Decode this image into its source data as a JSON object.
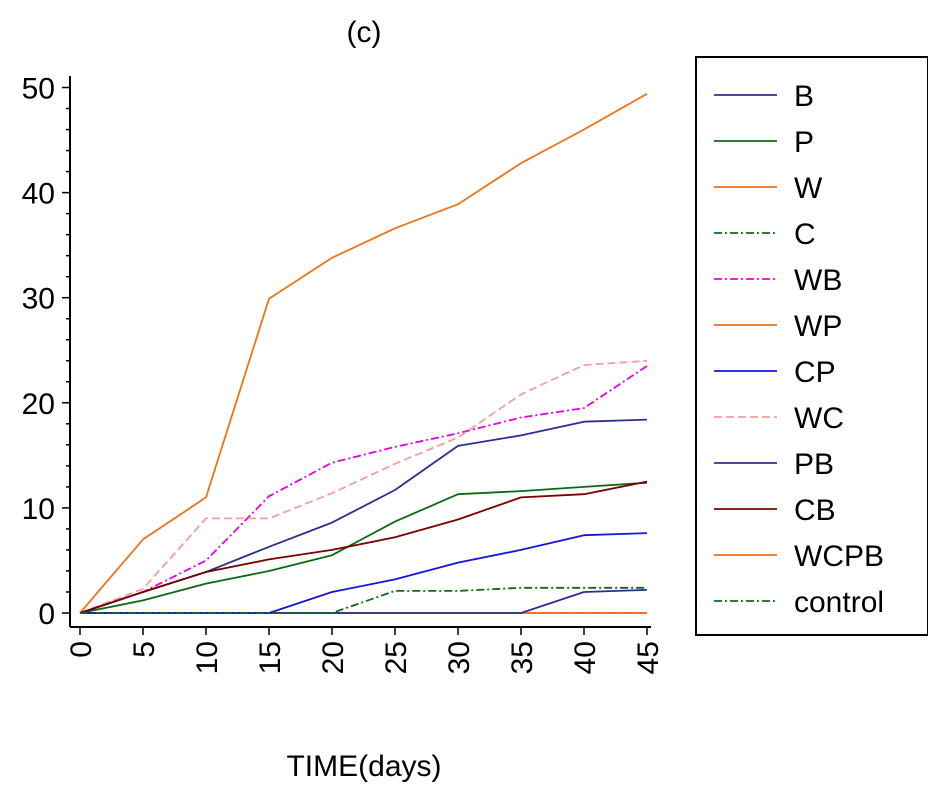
{
  "chart_data": {
    "type": "line",
    "title": "(c)",
    "xlabel": "TIME(days)",
    "ylabel": "",
    "x": [
      0,
      5,
      10,
      15,
      20,
      25,
      30,
      35,
      40,
      45
    ],
    "xlim": [
      0,
      45
    ],
    "ylim": [
      0,
      51
    ],
    "x_ticks": [
      "0",
      "5",
      "10",
      "15",
      "20",
      "25",
      "30",
      "35",
      "40",
      "45"
    ],
    "y_ticks": [
      "0",
      "10",
      "20",
      "30",
      "40",
      "50"
    ],
    "grid": false,
    "legend_position": "right",
    "series": [
      {
        "name": "B",
        "color": "#2b2f8f",
        "dash": "solid",
        "values": [
          0,
          0,
          0,
          0,
          0,
          0,
          0,
          0,
          2.0,
          2.2
        ]
      },
      {
        "name": "P",
        "color": "#0b6b12",
        "dash": "solid",
        "values": [
          0,
          1.2,
          2.8,
          4.0,
          5.5,
          8.7,
          11.3,
          11.6,
          12.0,
          12.4
        ]
      },
      {
        "name": "W",
        "color": "#f07318",
        "dash": "solid",
        "values": [
          0,
          7.0,
          11.0,
          29.9,
          33.8,
          36.6,
          38.9,
          42.8,
          46.0,
          49.4
        ]
      },
      {
        "name": "C",
        "color": "#0b6b12",
        "dash": "dashdot",
        "values": [
          0,
          0,
          0,
          0,
          0,
          0,
          0,
          0,
          0,
          0
        ]
      },
      {
        "name": "WB",
        "color": "#e600e6",
        "dash": "dashdot",
        "values": [
          0,
          2.0,
          5.0,
          11.1,
          14.3,
          15.8,
          17.1,
          18.6,
          19.5,
          23.5
        ]
      },
      {
        "name": "WP",
        "color": "#f07318",
        "dash": "solid",
        "values": [
          0,
          0,
          0,
          0,
          0,
          0,
          0,
          0,
          0,
          0
        ]
      },
      {
        "name": "CP",
        "color": "#1515e0",
        "dash": "solid",
        "values": [
          0,
          0,
          0,
          0,
          2.0,
          3.2,
          4.8,
          6.0,
          7.4,
          7.6
        ]
      },
      {
        "name": "WC",
        "color": "#f4a09a",
        "dash": "dashed",
        "values": [
          0,
          2.3,
          9.0,
          9.0,
          11.4,
          14.2,
          16.7,
          20.8,
          23.6,
          24.0
        ]
      },
      {
        "name": "PB",
        "color": "#2b2f8f",
        "dash": "solid",
        "values": [
          0,
          2.0,
          3.9,
          6.3,
          8.6,
          11.7,
          15.9,
          16.9,
          18.2,
          18.4
        ]
      },
      {
        "name": "CB",
        "color": "#7a0000",
        "dash": "solid",
        "values": [
          0,
          2.0,
          3.9,
          5.1,
          6.0,
          7.2,
          8.9,
          11.0,
          11.3,
          12.5
        ]
      },
      {
        "name": "WCPB",
        "color": "#f07318",
        "dash": "solid",
        "values": [
          0,
          0,
          0,
          0,
          0,
          0,
          0,
          0,
          0,
          0
        ]
      },
      {
        "name": "control",
        "color": "#0b6b12",
        "dash": "dashdot",
        "values": [
          0,
          0,
          0,
          0,
          0,
          2.1,
          2.1,
          2.4,
          2.4,
          2.4
        ]
      }
    ]
  }
}
